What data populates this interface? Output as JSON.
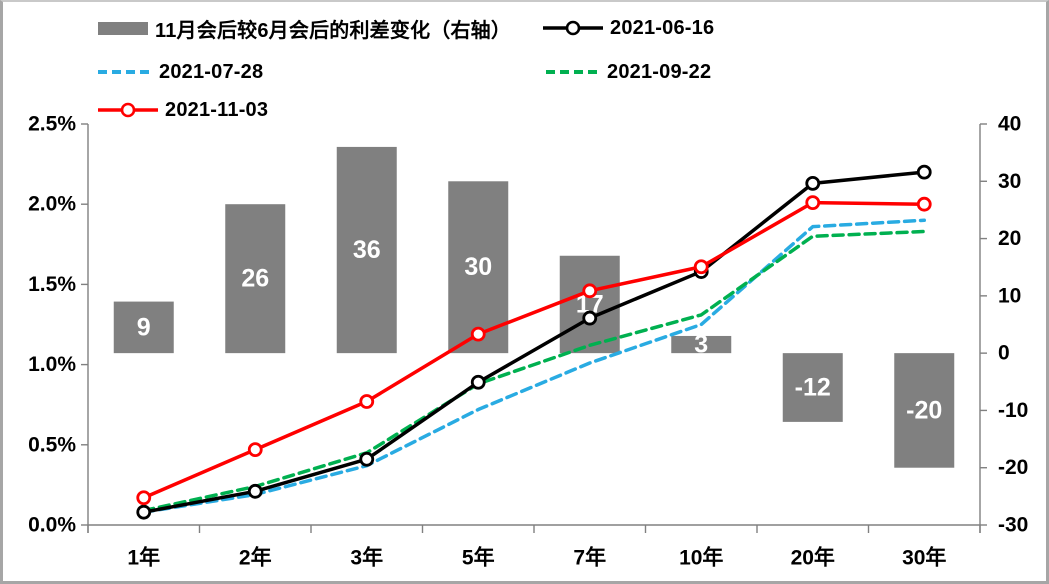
{
  "chart_data": {
    "type": "combo-bar-line",
    "categories": [
      "1年",
      "2年",
      "3年",
      "5年",
      "7年",
      "10年",
      "20年",
      "30年"
    ],
    "bar_series": {
      "name": "11月会后较6月会后的利差变化（右轴）",
      "axis": "right",
      "color": "#808080",
      "label_color": "#ffffff",
      "values": [
        9,
        26,
        36,
        30,
        17,
        3,
        -12,
        -20
      ]
    },
    "line_series": [
      {
        "name": "2021-06-16",
        "color": "#000000",
        "style": "solid",
        "marker": true,
        "values": [
          0.08,
          0.21,
          0.41,
          0.89,
          1.29,
          1.58,
          2.13,
          2.2
        ]
      },
      {
        "name": "2021-07-28",
        "color": "#29abe2",
        "style": "dashed",
        "marker": false,
        "values": [
          0.08,
          0.19,
          0.37,
          0.72,
          1.01,
          1.25,
          1.86,
          1.9
        ]
      },
      {
        "name": "2021-09-22",
        "color": "#00b050",
        "style": "dashed",
        "marker": false,
        "values": [
          0.09,
          0.24,
          0.45,
          0.88,
          1.12,
          1.31,
          1.8,
          1.83
        ]
      },
      {
        "name": "2021-11-03",
        "color": "#ff0000",
        "style": "solid",
        "marker": true,
        "values": [
          0.17,
          0.47,
          0.77,
          1.19,
          1.46,
          1.61,
          2.01,
          2.0
        ]
      }
    ],
    "left_axis": {
      "unit": "%",
      "min": 0,
      "max": 2.5,
      "ticks": [
        "2.5%",
        "2.0%",
        "1.5%",
        "1.0%",
        "0.5%",
        "0.0%"
      ]
    },
    "right_axis": {
      "min": -30,
      "max": 40,
      "ticks": [
        "40",
        "30",
        "20",
        "10",
        "0",
        "-10",
        "-20",
        "-30"
      ]
    },
    "grid": false,
    "legend_position": "top",
    "axis_color": "#808080",
    "text_color": "#000000"
  }
}
